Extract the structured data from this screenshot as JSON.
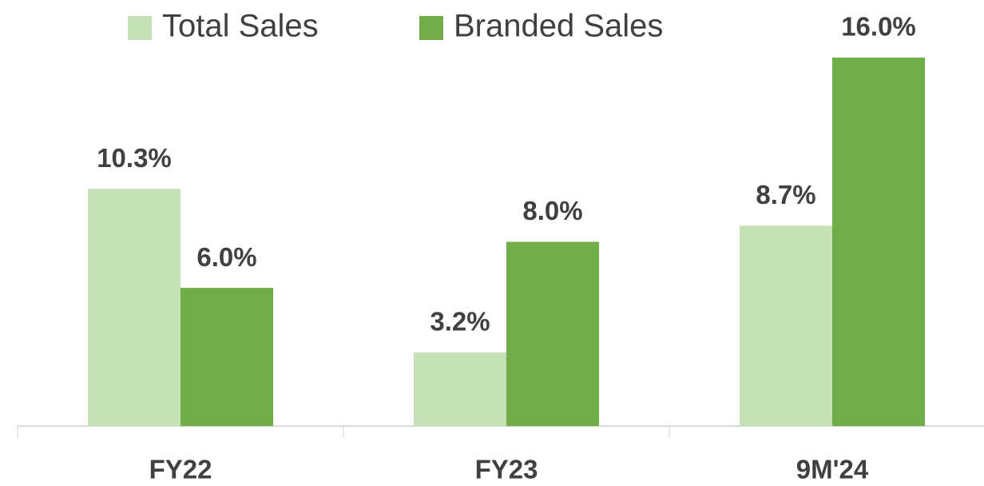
{
  "chart_data": {
    "type": "bar",
    "categories": [
      "FY22",
      "FY23",
      "9M'24"
    ],
    "series": [
      {
        "name": "Total Sales",
        "color": "#c5e0b4",
        "values": [
          10.3,
          3.2,
          8.7
        ],
        "value_labels": [
          "10.3%",
          "3.2%",
          "8.7%"
        ]
      },
      {
        "name": "Branded Sales",
        "color": "#70ad47",
        "values": [
          6.0,
          8.0,
          16.0
        ],
        "value_labels": [
          "6.0%",
          "8.0%",
          "16.0%"
        ]
      }
    ],
    "ylim": [
      0,
      16
    ],
    "grid": false,
    "legend": "top"
  }
}
